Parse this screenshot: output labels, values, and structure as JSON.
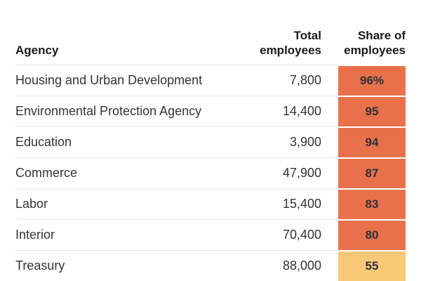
{
  "header": {
    "agency": "Agency",
    "total": "Total\nemployees",
    "share": "Share of\nemployees"
  },
  "rows": [
    {
      "agency": "Housing and Urban Development",
      "total": "7,800",
      "share": "96%",
      "share_color": "#E8714B"
    },
    {
      "agency": "Environmental Protection Agency",
      "total": "14,400",
      "share": "95",
      "share_color": "#E8714B"
    },
    {
      "agency": "Education",
      "total": "3,900",
      "share": "94",
      "share_color": "#E8714B"
    },
    {
      "agency": "Commerce",
      "total": "47,900",
      "share": "87",
      "share_color": "#E8714B"
    },
    {
      "agency": "Labor",
      "total": "15,400",
      "share": "83",
      "share_color": "#E8714B"
    },
    {
      "agency": "Interior",
      "total": "70,400",
      "share": "80",
      "share_color": "#E8714B"
    },
    {
      "agency": "Treasury",
      "total": "88,000",
      "share": "55",
      "share_color": "#FAC978"
    }
  ],
  "colors": {
    "highlight_high": "#E8714B",
    "highlight_low": "#FAC978",
    "separator": "#e8e8e8",
    "text": "#333333"
  },
  "chart_data": {
    "type": "table",
    "columns": [
      "Agency",
      "Total employees",
      "Share of employees"
    ],
    "rows": [
      {
        "agency": "Housing and Urban Development",
        "total_employees": 7800,
        "share_of_employees_pct": 96
      },
      {
        "agency": "Environmental Protection Agency",
        "total_employees": 14400,
        "share_of_employees_pct": 95
      },
      {
        "agency": "Education",
        "total_employees": 3900,
        "share_of_employees_pct": 94
      },
      {
        "agency": "Commerce",
        "total_employees": 47900,
        "share_of_employees_pct": 87
      },
      {
        "agency": "Labor",
        "total_employees": 15400,
        "share_of_employees_pct": 83
      },
      {
        "agency": "Interior",
        "total_employees": 70400,
        "share_of_employees_pct": 80
      },
      {
        "agency": "Treasury",
        "total_employees": 88000,
        "share_of_employees_pct": 55
      }
    ],
    "notes": "Share of employees column shown as colored heat cells: orange for high values (80-96), light yellow-orange for 55."
  }
}
